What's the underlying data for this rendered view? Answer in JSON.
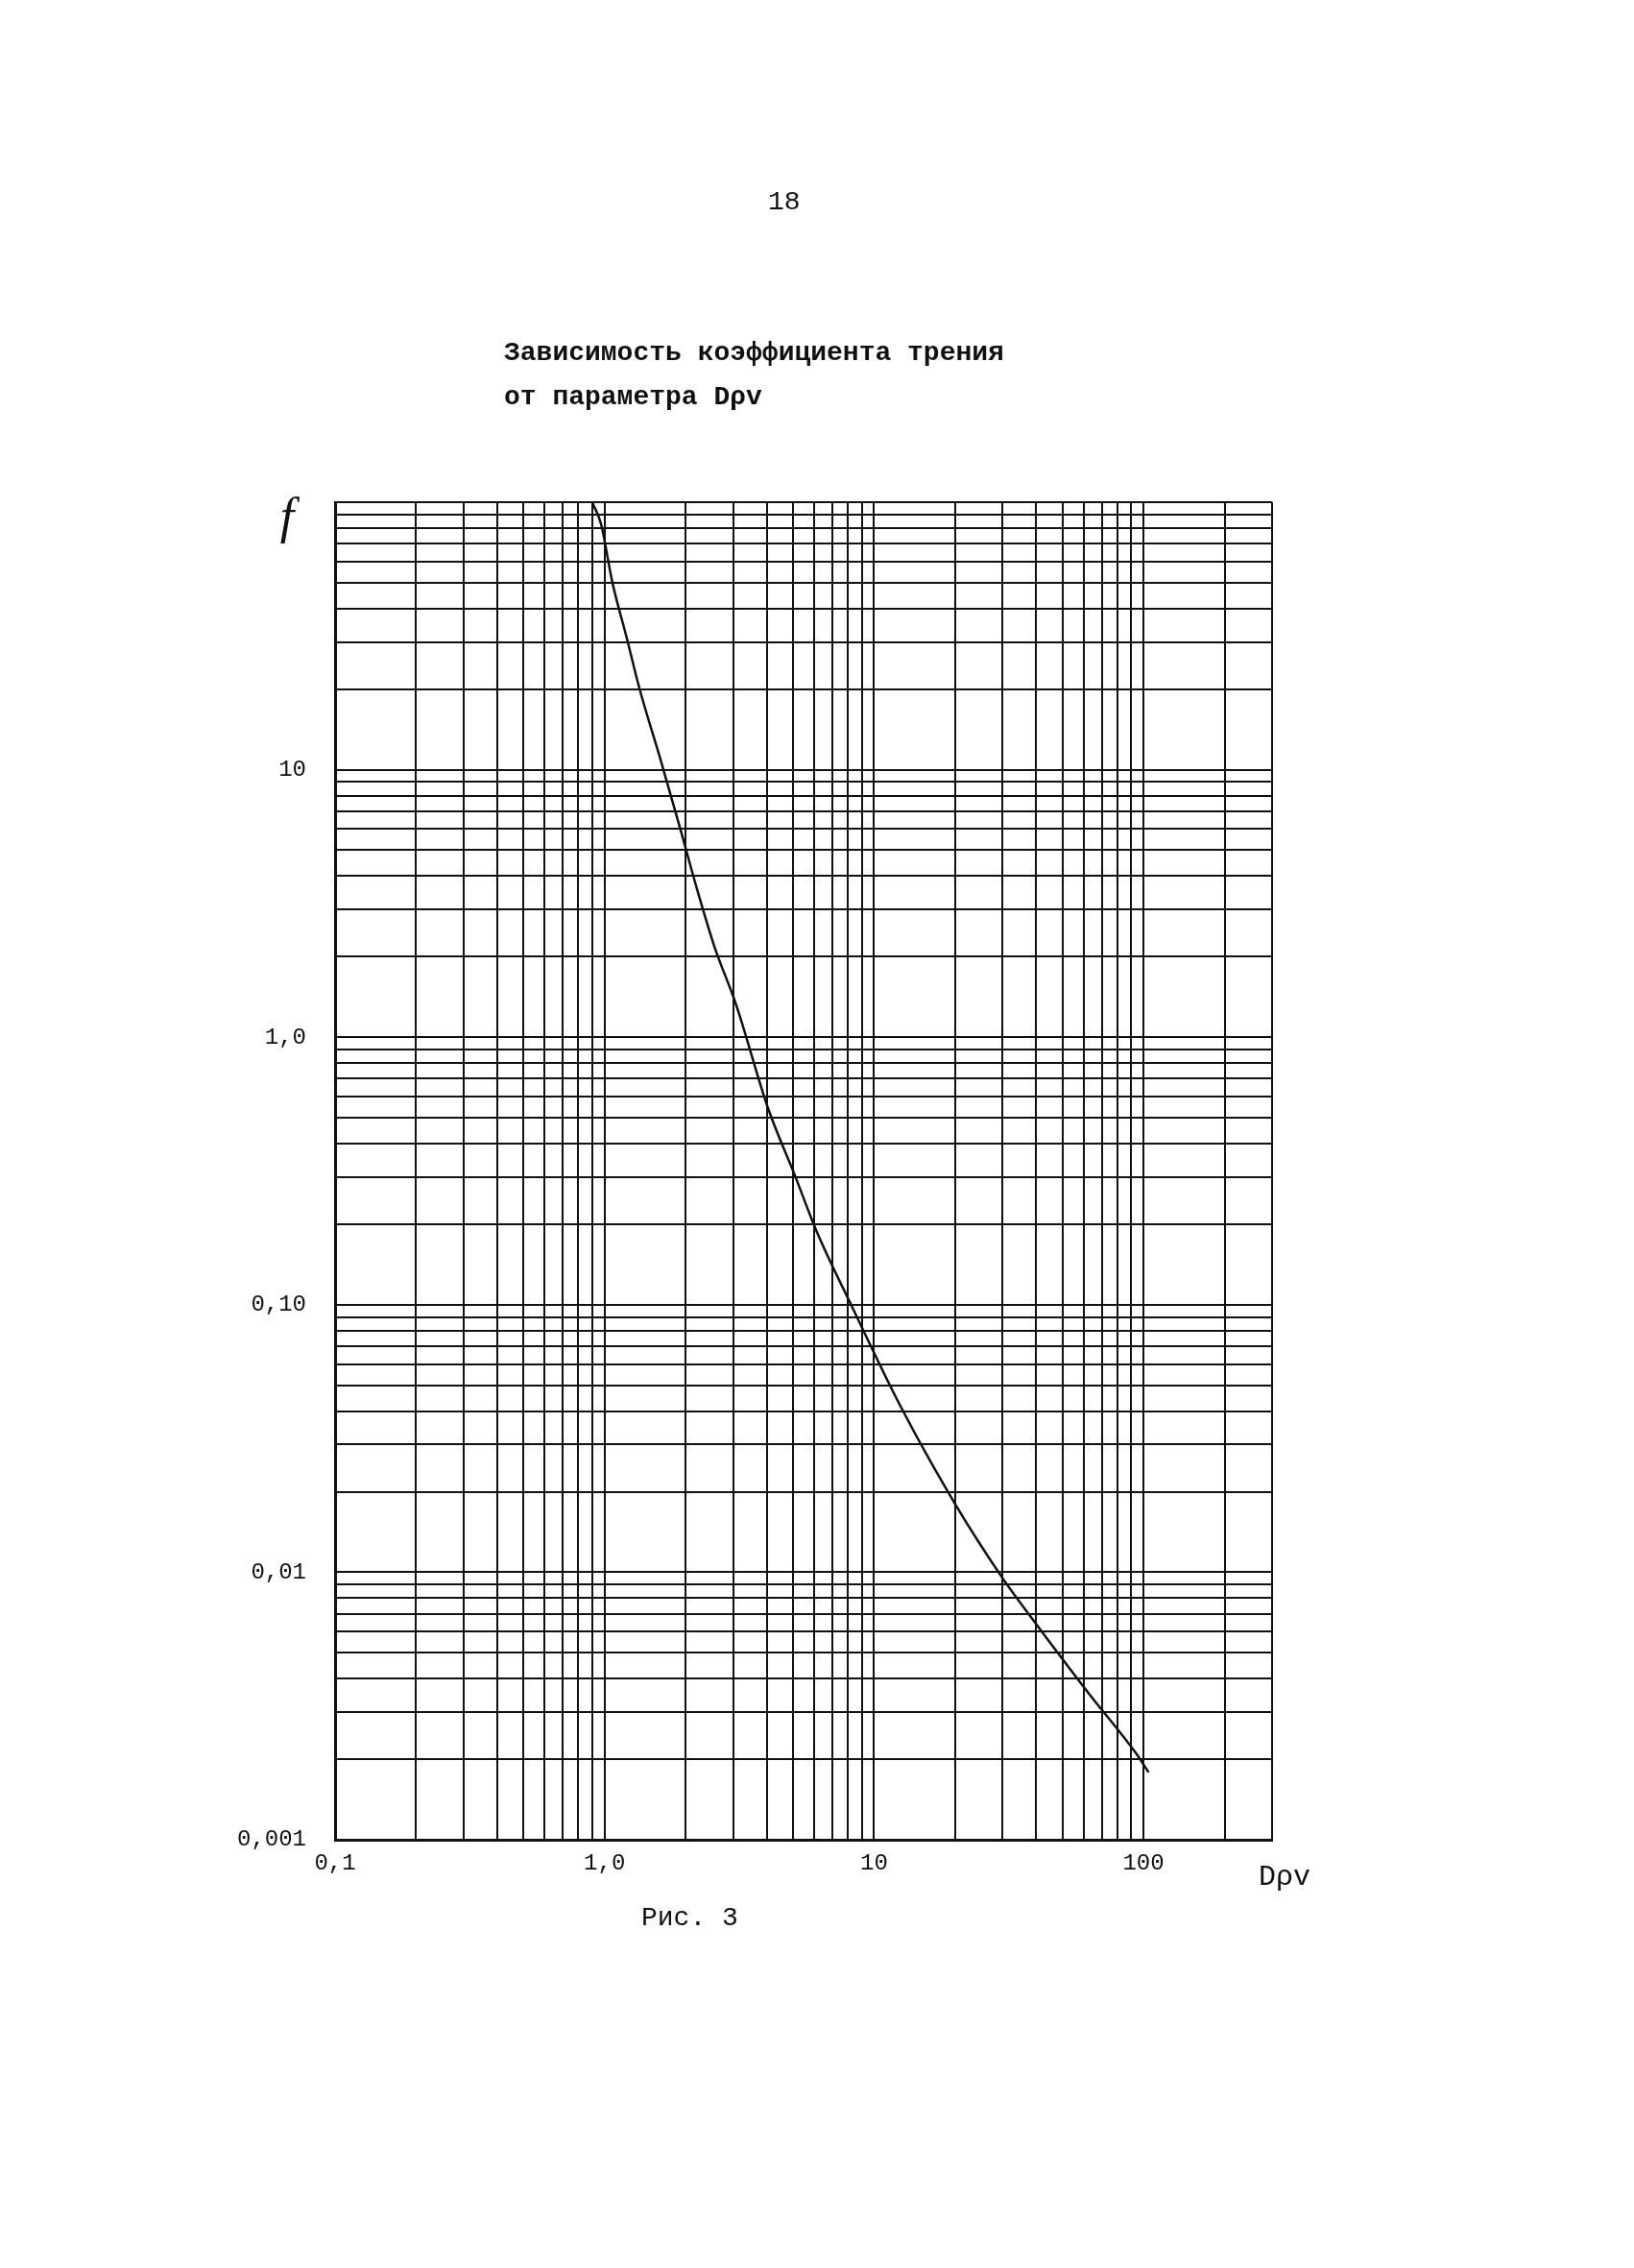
{
  "chart_data": {
    "type": "line",
    "title": "Зависимость коэффициента трения от параметра Dρv",
    "xlabel": "Dρv",
    "ylabel": "f",
    "annotations": [
      "18",
      "Рис. 3"
    ],
    "x": [
      0.9,
      0.97,
      1.07,
      1.21,
      1.35,
      1.61,
      1.92,
      2.2,
      2.55,
      3.08,
      4.05,
      5.05,
      6.1,
      8.3,
      12.5,
      20,
      30,
      40,
      63,
      94,
      104
    ],
    "values": [
      100,
      83,
      50,
      31,
      20,
      11,
      5.9,
      3.6,
      2.2,
      1.32,
      0.54,
      0.31,
      0.19,
      0.098,
      0.042,
      0.018,
      0.0095,
      0.0064,
      0.0035,
      0.0021,
      0.0018
    ],
    "color": "#111111",
    "marker": "none",
    "line_style": "solid",
    "log": "xy",
    "grid": true,
    "xlim": [
      0.1,
      300
    ],
    "xticks": [
      {
        "value": 0.1,
        "label": "0,1"
      },
      {
        "value": 0.2,
        "label": null
      },
      {
        "value": 0.3,
        "label": null
      },
      {
        "value": 0.4,
        "label": null
      },
      {
        "value": 0.5,
        "label": null
      },
      {
        "value": 0.6,
        "label": null
      },
      {
        "value": 0.7,
        "label": null
      },
      {
        "value": 0.8,
        "label": null
      },
      {
        "value": 0.9,
        "label": null
      },
      {
        "value": 1,
        "label": "1,0"
      },
      {
        "value": 2,
        "label": null
      },
      {
        "value": 3,
        "label": null
      },
      {
        "value": 4,
        "label": null
      },
      {
        "value": 5,
        "label": null
      },
      {
        "value": 6,
        "label": null
      },
      {
        "value": 7,
        "label": null
      },
      {
        "value": 8,
        "label": null
      },
      {
        "value": 9,
        "label": null
      },
      {
        "value": 10,
        "label": "10"
      },
      {
        "value": 20,
        "label": null
      },
      {
        "value": 30,
        "label": null
      },
      {
        "value": 40,
        "label": null
      },
      {
        "value": 50,
        "label": null
      },
      {
        "value": 60,
        "label": null
      },
      {
        "value": 70,
        "label": null
      },
      {
        "value": 80,
        "label": null
      },
      {
        "value": 90,
        "label": null
      },
      {
        "value": 100,
        "label": "100"
      },
      {
        "value": 200,
        "label": null
      },
      {
        "value": 300,
        "label": null
      }
    ],
    "ylim": [
      0.001,
      100
    ],
    "yticks": [
      {
        "value": 0.001,
        "label": "0,001"
      },
      {
        "value": 0.002,
        "label": null
      },
      {
        "value": 0.003,
        "label": null
      },
      {
        "value": 0.004,
        "label": null
      },
      {
        "value": 0.005,
        "label": null
      },
      {
        "value": 0.006,
        "label": null
      },
      {
        "value": 0.007,
        "label": null
      },
      {
        "value": 0.008,
        "label": null
      },
      {
        "value": 0.009,
        "label": null
      },
      {
        "value": 0.01,
        "label": "0,01"
      },
      {
        "value": 0.02,
        "label": null
      },
      {
        "value": 0.03,
        "label": null
      },
      {
        "value": 0.04,
        "label": null
      },
      {
        "value": 0.05,
        "label": null
      },
      {
        "value": 0.06,
        "label": null
      },
      {
        "value": 0.07,
        "label": null
      },
      {
        "value": 0.08,
        "label": null
      },
      {
        "value": 0.09,
        "label": null
      },
      {
        "value": 0.1,
        "label": "0,10"
      },
      {
        "value": 0.2,
        "label": null
      },
      {
        "value": 0.3,
        "label": null
      },
      {
        "value": 0.4,
        "label": null
      },
      {
        "value": 0.5,
        "label": null
      },
      {
        "value": 0.6,
        "label": null
      },
      {
        "value": 0.7,
        "label": null
      },
      {
        "value": 0.8,
        "label": null
      },
      {
        "value": 0.9,
        "label": null
      },
      {
        "value": 1,
        "label": "1,0"
      },
      {
        "value": 2,
        "label": null
      },
      {
        "value": 3,
        "label": null
      },
      {
        "value": 4,
        "label": null
      },
      {
        "value": 5,
        "label": null
      },
      {
        "value": 6,
        "label": null
      },
      {
        "value": 7,
        "label": null
      },
      {
        "value": 8,
        "label": null
      },
      {
        "value": 9,
        "label": null
      },
      {
        "value": 10,
        "label": "10"
      },
      {
        "value": 20,
        "label": null
      },
      {
        "value": 30,
        "label": null
      },
      {
        "value": 40,
        "label": null
      },
      {
        "value": 50,
        "label": null
      },
      {
        "value": 60,
        "label": null
      },
      {
        "value": 70,
        "label": null
      },
      {
        "value": 80,
        "label": null
      },
      {
        "value": 90,
        "label": null
      },
      {
        "value": 100,
        "label": null
      }
    ]
  }
}
